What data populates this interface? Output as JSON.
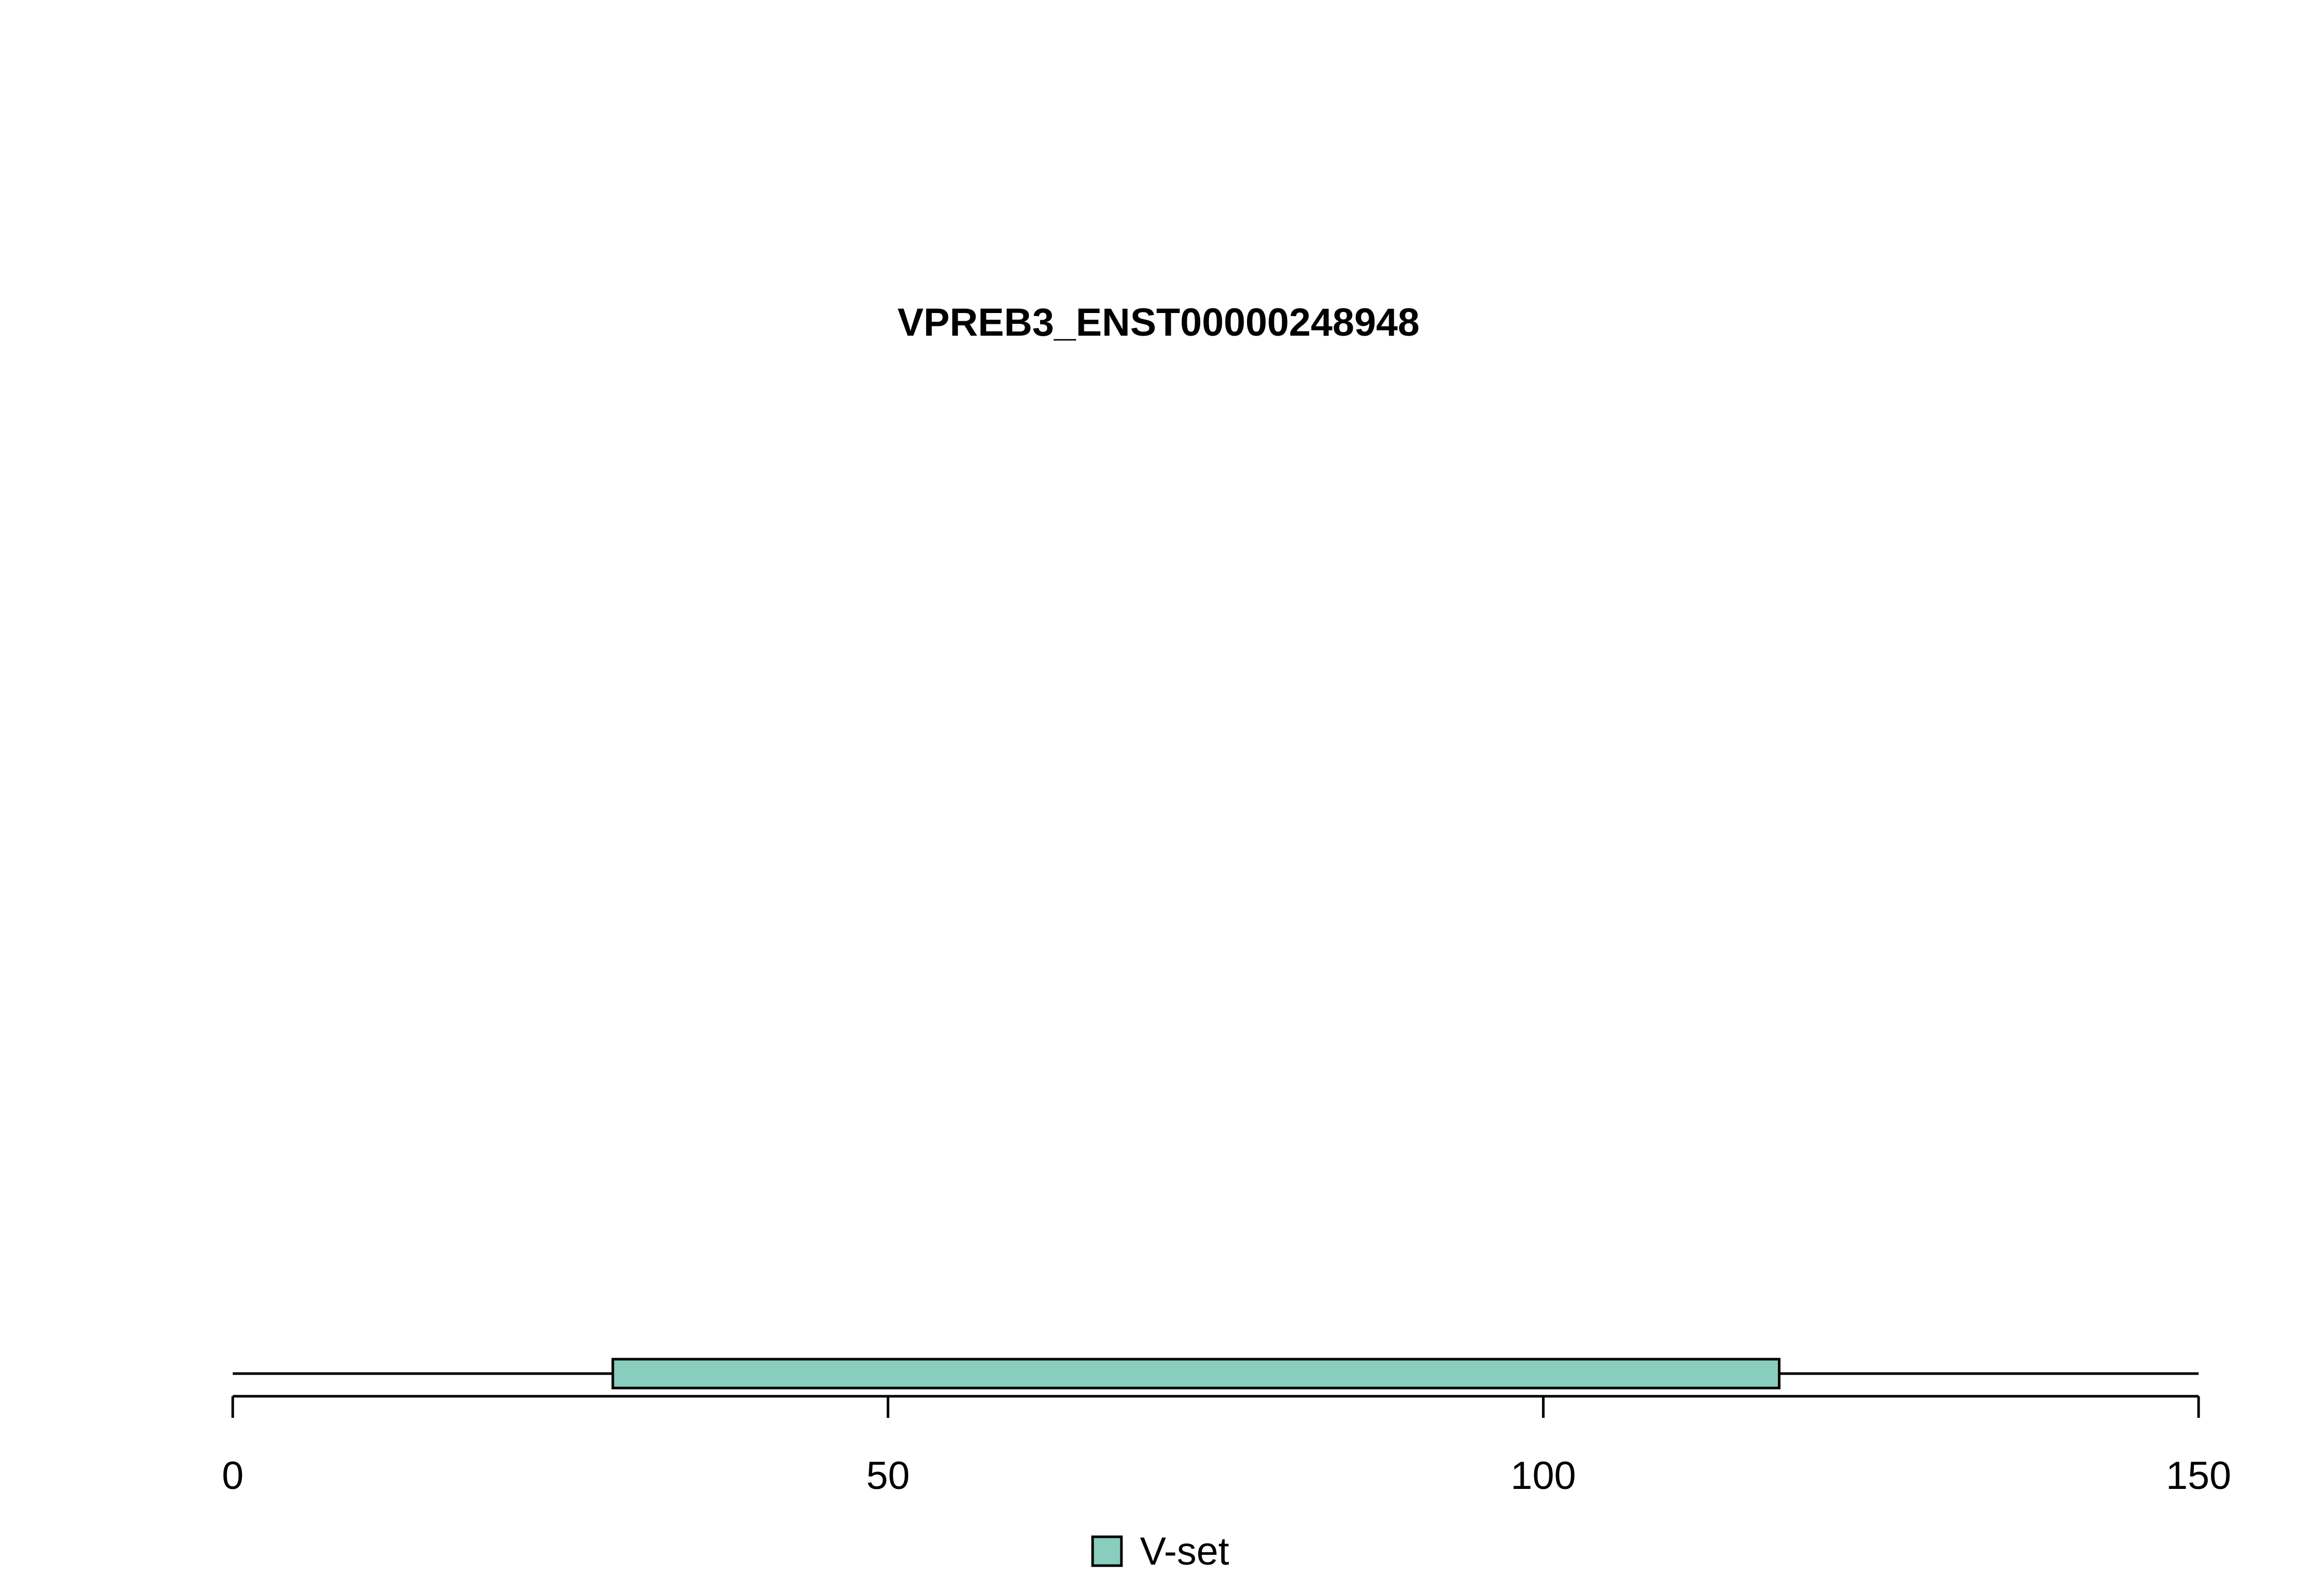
{
  "chart_data": {
    "type": "bar",
    "title": "VPREB3_ENST00000248948",
    "protein_length": 150,
    "xlim": [
      0,
      150
    ],
    "x_ticks": [
      0,
      50,
      100,
      150
    ],
    "x_tick_labels": [
      "0",
      "50",
      "100",
      "150"
    ],
    "domains": [
      {
        "name": "V-set",
        "start": 29,
        "end": 118,
        "color": "#88CDBE"
      }
    ],
    "legend": {
      "placement": "bottom-center",
      "entries": [
        {
          "label": "V-set",
          "color": "#88CDBE"
        }
      ]
    },
    "grid": false
  }
}
